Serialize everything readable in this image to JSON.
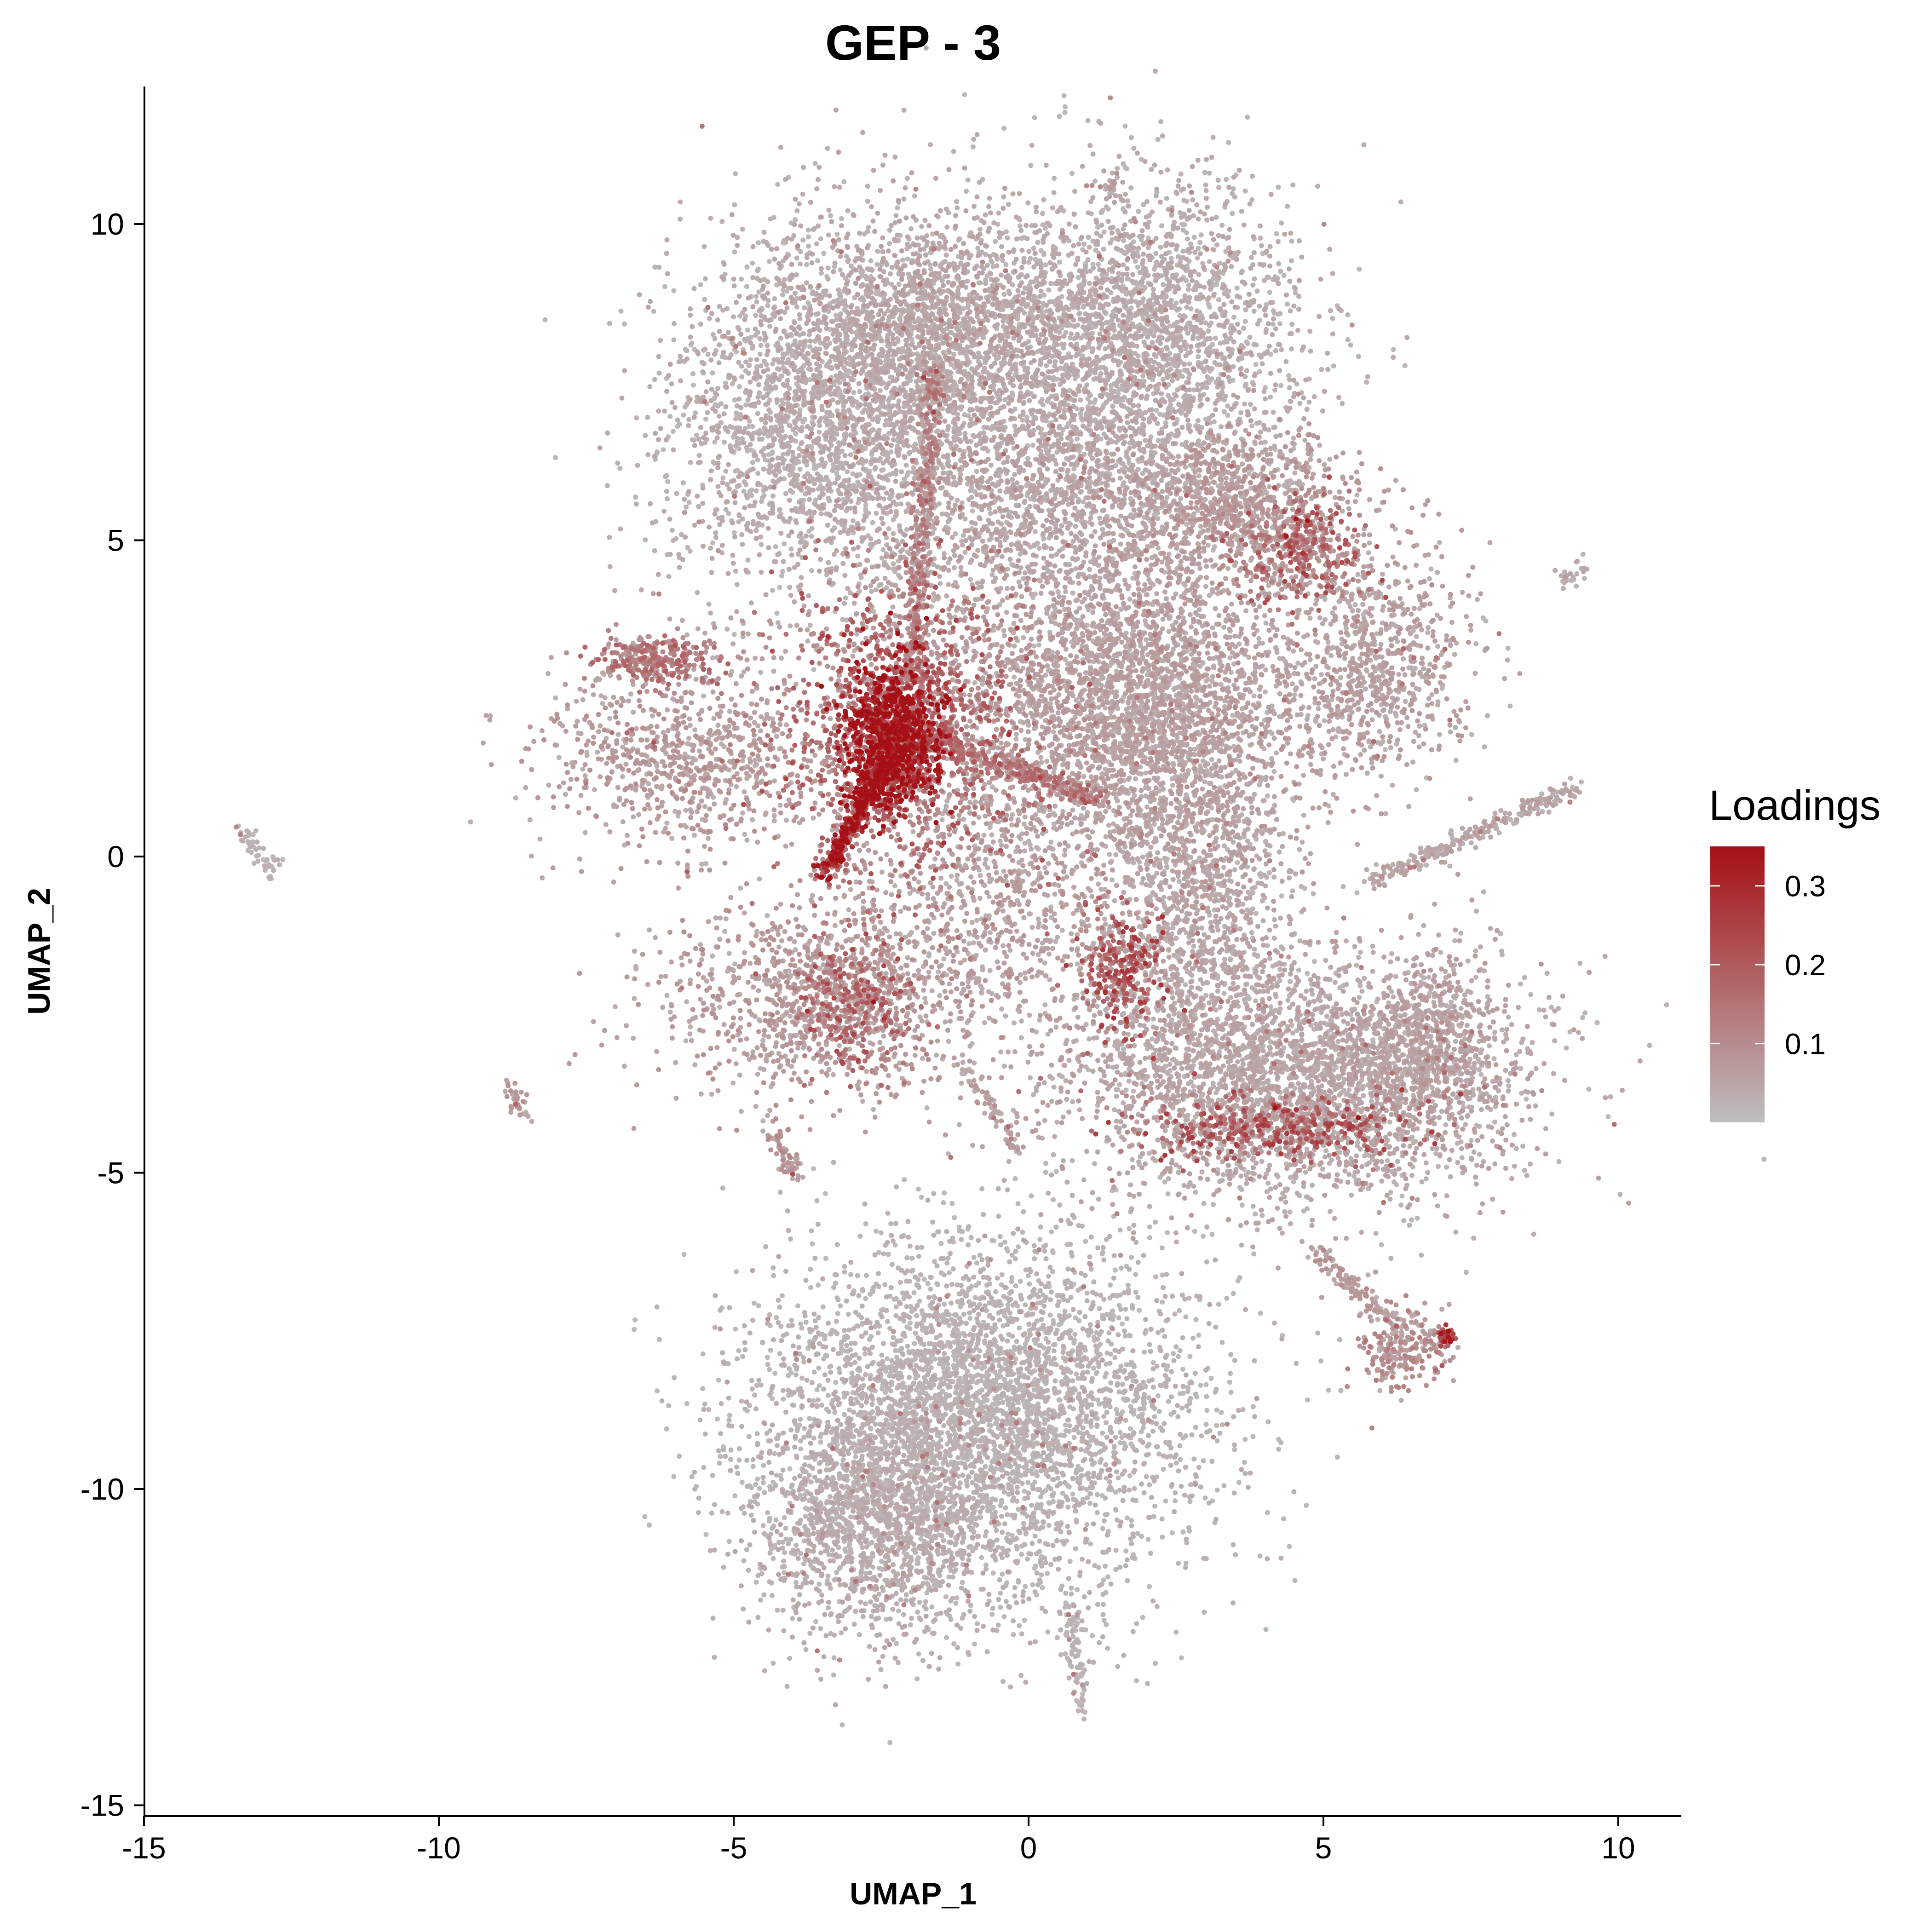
{
  "chart_data": {
    "type": "scatter",
    "title": "GEP - 3",
    "xlabel": "UMAP_1",
    "ylabel": "UMAP_2",
    "xlim": [
      -15.3,
      11.2
    ],
    "ylim": [
      -15.2,
      12.2
    ],
    "x_ticks": [
      -15,
      -10,
      -5,
      0,
      5,
      10
    ],
    "y_ticks": [
      -15,
      -10,
      -5,
      0,
      5,
      10
    ],
    "x_tick_labels": [
      "-15",
      "-10",
      "-5",
      "0",
      "5",
      "10"
    ],
    "y_tick_labels": [
      "-15",
      "-10",
      "-5",
      "0",
      "5",
      "10"
    ],
    "grid": false,
    "color_scale": {
      "title": "Loadings",
      "low_color": "#bebebe",
      "high_color": "#a50f15",
      "range": [
        0,
        0.35
      ],
      "ticks": [
        0.1,
        0.2,
        0.3
      ],
      "tick_labels": [
        "0.1",
        "0.2",
        "0.3"
      ],
      "position": "right"
    },
    "regions": [
      {
        "name": "top-left lobe",
        "cx": -3.4,
        "cy": 6.9,
        "sx": 1.4,
        "sy": 1.5,
        "n": 2600,
        "load": 0.03,
        "kind": "g"
      },
      {
        "name": "top-middle lobe",
        "cx": -1.6,
        "cy": 8.4,
        "sx": 1.2,
        "sy": 0.9,
        "n": 1500,
        "load": 0.04,
        "kind": "g"
      },
      {
        "name": "top-right lobe",
        "cx": 1.8,
        "cy": 8.3,
        "sx": 1.4,
        "sy": 1.2,
        "n": 2600,
        "load": 0.03,
        "kind": "g"
      },
      {
        "name": "upper center",
        "cx": 0.2,
        "cy": 5.8,
        "sx": 1.6,
        "sy": 1.0,
        "n": 1600,
        "load": 0.04,
        "kind": "g"
      },
      {
        "name": "right upper band",
        "cx": 3.6,
        "cy": 5.6,
        "sx": 1.0,
        "sy": 0.6,
        "n": 900,
        "load": 0.06,
        "kind": "g"
      },
      {
        "name": "right hot spot",
        "cx": 4.6,
        "cy": 4.8,
        "sx": 0.5,
        "sy": 0.4,
        "n": 320,
        "load": 0.15,
        "kind": "g"
      },
      {
        "name": "far right lobe",
        "cx": 5.9,
        "cy": 3.1,
        "sx": 0.8,
        "sy": 0.9,
        "n": 800,
        "load": 0.05,
        "kind": "g"
      },
      {
        "name": "center mass",
        "cx": 1.8,
        "cy": 2.4,
        "sx": 1.5,
        "sy": 1.3,
        "n": 3400,
        "load": 0.05,
        "kind": "g"
      },
      {
        "name": "center right column",
        "cx": 2.8,
        "cy": -0.6,
        "sx": 0.8,
        "sy": 1.6,
        "n": 1400,
        "load": 0.04,
        "kind": "g"
      },
      {
        "name": "lower right arc",
        "cx": 4.6,
        "cy": -3.5,
        "sx": 1.9,
        "sy": 1.0,
        "n": 3200,
        "load": 0.04,
        "kind": "g"
      },
      {
        "name": "arc hot band",
        "cx": 4.2,
        "cy": -4.3,
        "sx": 1.3,
        "sy": 0.25,
        "n": 420,
        "load": 0.17,
        "kind": "g"
      },
      {
        "name": "arc right end",
        "cx": 6.8,
        "cy": -3.0,
        "sx": 0.6,
        "sy": 0.7,
        "n": 600,
        "load": 0.05,
        "kind": "g"
      },
      {
        "name": "lower middle hot spot",
        "cx": 1.6,
        "cy": -1.8,
        "sx": 0.35,
        "sy": 0.5,
        "n": 280,
        "load": 0.18,
        "kind": "g"
      },
      {
        "name": "central hot core",
        "cx": -2.3,
        "cy": 1.9,
        "sx": 0.4,
        "sy": 0.6,
        "n": 1100,
        "load": 0.3,
        "kind": "g"
      },
      {
        "name": "core halo",
        "cx": -2.1,
        "cy": 2.0,
        "sx": 1.1,
        "sy": 1.2,
        "n": 1400,
        "load": 0.14,
        "kind": "g"
      },
      {
        "name": "left arm",
        "cx": -5.8,
        "cy": 1.6,
        "sx": 1.2,
        "sy": 0.8,
        "n": 900,
        "load": 0.06,
        "kind": "g"
      },
      {
        "name": "left small cluster",
        "cx": -6.3,
        "cy": 3.1,
        "sx": 0.5,
        "sy": 0.2,
        "n": 260,
        "load": 0.12,
        "kind": "g"
      },
      {
        "name": "left lower branch",
        "cx": -3.6,
        "cy": -2.2,
        "sx": 1.4,
        "sy": 0.8,
        "n": 1100,
        "load": 0.06,
        "kind": "g"
      },
      {
        "name": "left lower hot",
        "cx": -3.0,
        "cy": -2.4,
        "sx": 0.5,
        "sy": 0.5,
        "n": 300,
        "load": 0.15,
        "kind": "g"
      },
      {
        "name": "middle scatter",
        "cx": -0.6,
        "cy": -0.8,
        "sx": 1.2,
        "sy": 1.4,
        "n": 900,
        "load": 0.05,
        "kind": "g"
      },
      {
        "name": "bottom cluster",
        "cx": -0.8,
        "cy": -8.8,
        "sx": 1.9,
        "sy": 1.4,
        "n": 4200,
        "load": 0.02,
        "kind": "g"
      },
      {
        "name": "bottom cluster lower",
        "cx": -2.6,
        "cy": -10.4,
        "sx": 1.0,
        "sy": 1.0,
        "n": 1500,
        "load": 0.03,
        "kind": "g"
      },
      {
        "name": "bottom right island",
        "cx": 6.4,
        "cy": -7.8,
        "sx": 0.35,
        "sy": 0.3,
        "n": 220,
        "load": 0.08,
        "kind": "g"
      },
      {
        "name": "bottom right island hot",
        "cx": 7.1,
        "cy": -7.6,
        "sx": 0.1,
        "sy": 0.08,
        "n": 40,
        "load": 0.22,
        "kind": "g"
      },
      {
        "name": "far left strand",
        "x0": -13.4,
        "y0": 0.4,
        "x1": -12.8,
        "y1": -0.2,
        "n": 50,
        "load": 0.02,
        "kind": "l"
      },
      {
        "name": "left small strand",
        "x0": -8.8,
        "y0": -3.6,
        "x1": -8.6,
        "y1": -4.1,
        "n": 35,
        "load": 0.06,
        "kind": "l"
      },
      {
        "name": "core to left diagonal",
        "x0": -2.3,
        "y0": 1.6,
        "x1": -3.5,
        "y1": -0.3,
        "n": 420,
        "load": 0.25,
        "kind": "l"
      },
      {
        "name": "core to top",
        "x0": -2.0,
        "y0": 2.8,
        "x1": -1.6,
        "y1": 7.8,
        "n": 420,
        "load": 0.1,
        "kind": "l"
      },
      {
        "name": "core to right",
        "x0": -1.8,
        "y0": 1.9,
        "x1": 1.2,
        "y1": 0.9,
        "n": 300,
        "load": 0.12,
        "kind": "l"
      },
      {
        "name": "right thin strand",
        "x0": 5.8,
        "y0": -0.4,
        "x1": 9.3,
        "y1": 1.1,
        "n": 260,
        "load": 0.04,
        "kind": "l"
      },
      {
        "name": "far right tiny strand",
        "x0": 9.0,
        "y0": 4.3,
        "x1": 9.4,
        "y1": 4.6,
        "n": 25,
        "load": 0.03,
        "kind": "l"
      },
      {
        "name": "strand to bottom right island",
        "x0": 4.8,
        "y0": -6.2,
        "x1": 6.3,
        "y1": -7.5,
        "n": 120,
        "load": 0.06,
        "kind": "l"
      },
      {
        "name": "bottom tail",
        "x0": 0.7,
        "y0": -11.8,
        "x1": 0.9,
        "y1": -13.5,
        "n": 90,
        "load": 0.02,
        "kind": "l"
      },
      {
        "name": "lower middle strands",
        "x0": -1.0,
        "y0": -3.4,
        "x1": -0.2,
        "y1": -4.6,
        "n": 70,
        "load": 0.05,
        "kind": "l"
      },
      {
        "name": "lower left strands",
        "x0": -4.3,
        "y0": -4.3,
        "x1": -4.0,
        "y1": -5.0,
        "n": 60,
        "load": 0.07,
        "kind": "l"
      },
      {
        "name": "top tip",
        "x0": 1.3,
        "y0": 10.7,
        "x1": 1.5,
        "y1": 10.4,
        "n": 20,
        "load": 0.05,
        "kind": "l"
      }
    ]
  }
}
